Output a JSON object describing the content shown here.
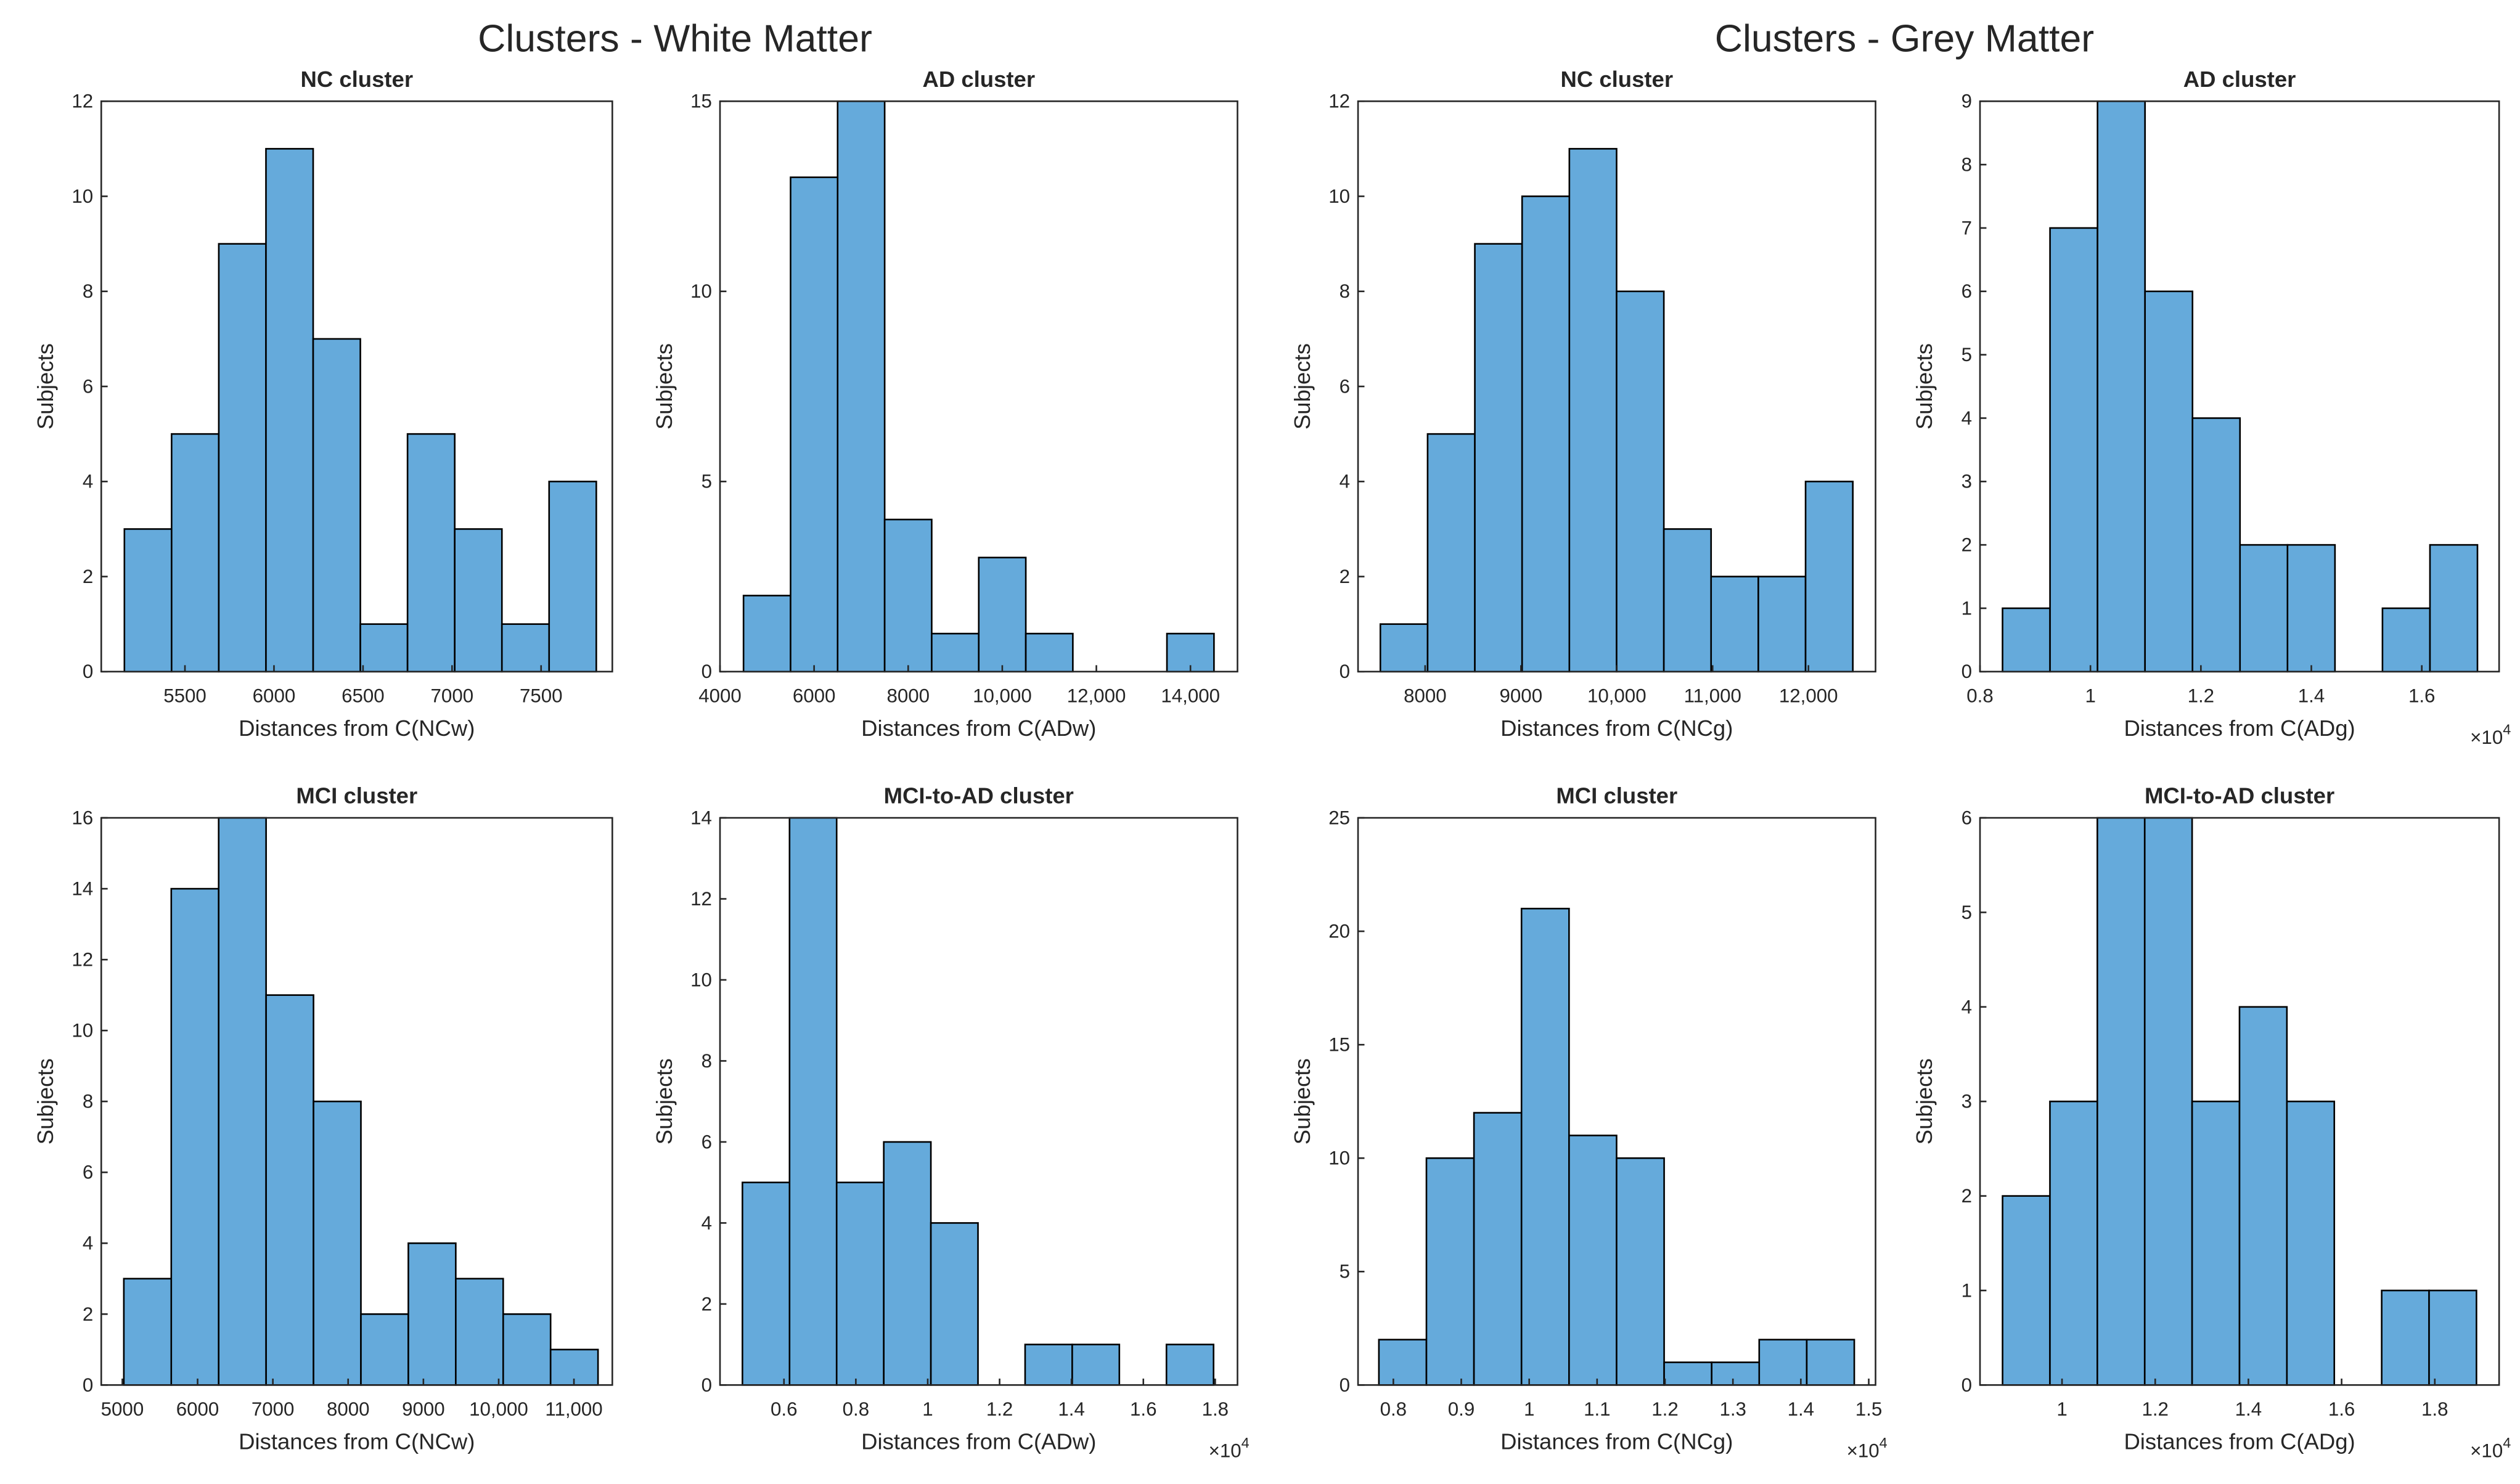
{
  "suptitles": [
    "Clusters - White Matter",
    "Clusters - Grey Matter"
  ],
  "chart_data": [
    {
      "type": "histogram",
      "title": "NC cluster",
      "xlabel": "Distances from C(NCw)",
      "ylabel": "Subjects",
      "color": "#65aadb",
      "bins": [
        5160,
        5425,
        5690,
        5955,
        6220,
        6485,
        6750,
        7015,
        7280,
        7545,
        7810
      ],
      "counts": [
        3,
        5,
        9,
        11,
        7,
        1,
        5,
        3,
        1,
        4
      ],
      "xlim": [
        5030,
        7900
      ],
      "ylim": [
        0,
        12
      ],
      "xticks": [
        5500,
        6000,
        6500,
        7000,
        7500
      ],
      "yticks": [
        0,
        2,
        4,
        6,
        8,
        10,
        12
      ]
    },
    {
      "type": "histogram",
      "title": "AD cluster",
      "xlabel": "Distances from C(ADw)",
      "ylabel": "Subjects",
      "color": "#65aadb",
      "bins": [
        4500,
        5500,
        6500,
        7500,
        8500,
        9500,
        10500,
        11500,
        12500,
        13500,
        14500
      ],
      "counts": [
        2,
        13,
        15,
        4,
        1,
        3,
        1,
        0,
        0,
        1
      ],
      "xlim": [
        4000,
        15000
      ],
      "ylim": [
        0,
        15
      ],
      "xticks": [
        4000,
        6000,
        8000,
        {
          "value": 10000,
          "label": "10,000"
        },
        {
          "value": 12000,
          "label": "12,000"
        },
        {
          "value": 14000,
          "label": "14,000"
        }
      ],
      "yticks": [
        0,
        5,
        10,
        15
      ]
    },
    {
      "type": "histogram",
      "title": "NC cluster",
      "xlabel": "Distances from C(NCg)",
      "ylabel": "Subjects",
      "color": "#65aadb",
      "bins": [
        7533,
        8026,
        8519,
        9012,
        9505,
        9998,
        10491,
        10984,
        11477,
        11970,
        12463
      ],
      "counts": [
        1,
        5,
        9,
        10,
        11,
        8,
        3,
        2,
        2,
        4
      ],
      "xlim": [
        7300,
        12700
      ],
      "ylim": [
        0,
        12
      ],
      "xticks": [
        8000,
        9000,
        {
          "value": 10000,
          "label": "10,000"
        },
        {
          "value": 11000,
          "label": "11,000"
        },
        {
          "value": 12000,
          "label": "12,000"
        }
      ],
      "yticks": [
        0,
        2,
        4,
        6,
        8,
        10,
        12
      ]
    },
    {
      "type": "histogram",
      "title": "AD cluster",
      "xlabel": "Distances from C(ADg)",
      "ylabel": "Subjects",
      "color": "#65aadb",
      "bins": [
        8408,
        9268,
        10128,
        10988,
        11848,
        12708,
        13568,
        14428,
        15288,
        16148,
        17008
      ],
      "counts": [
        1,
        7,
        9,
        6,
        4,
        2,
        2,
        0,
        1,
        2
      ],
      "xlim": [
        8000,
        17400
      ],
      "ylim": [
        0,
        9
      ],
      "xticks": [
        {
          "value": 8000,
          "label": "0.8"
        },
        {
          "value": 10000,
          "label": "1"
        },
        {
          "value": 12000,
          "label": "1.2"
        },
        {
          "value": 14000,
          "label": "1.4"
        },
        {
          "value": 16000,
          "label": "1.6"
        }
      ],
      "yticks": [
        0,
        1,
        2,
        3,
        4,
        5,
        6,
        7,
        8,
        9
      ],
      "x_multiplier": {
        "base": "×10",
        "exponent": "4"
      }
    },
    {
      "type": "histogram",
      "title": "MCI cluster",
      "xlabel": "Distances from C(NCw)",
      "ylabel": "Subjects",
      "color": "#65aadb",
      "bins": [
        5020,
        5650,
        6280,
        6910,
        7540,
        8170,
        8800,
        9430,
        10060,
        10690,
        11320
      ],
      "counts": [
        3,
        14,
        16,
        11,
        8,
        2,
        4,
        3,
        2,
        1
      ],
      "xlim": [
        4720,
        11510
      ],
      "ylim": [
        0,
        16
      ],
      "xticks": [
        5000,
        6000,
        7000,
        8000,
        9000,
        {
          "value": 10000,
          "label": "10,000"
        },
        {
          "value": 11000,
          "label": "11,000"
        }
      ],
      "yticks": [
        0,
        2,
        4,
        6,
        8,
        10,
        12,
        14,
        16
      ]
    },
    {
      "type": "histogram",
      "title": "MCI-to-AD cluster",
      "xlabel": "Distances from C(ADw)",
      "ylabel": "Subjects",
      "color": "#65aadb",
      "bins": [
        4844,
        6155,
        7466,
        8777,
        10088,
        11399,
        12710,
        14021,
        15332,
        16643,
        17954
      ],
      "counts": [
        5,
        14,
        5,
        6,
        4,
        0,
        1,
        1,
        0,
        1
      ],
      "xlim": [
        4220,
        18620
      ],
      "ylim": [
        0,
        14
      ],
      "xticks": [
        {
          "value": 6000,
          "label": "0.6"
        },
        {
          "value": 8000,
          "label": "0.8"
        },
        {
          "value": 10000,
          "label": "1"
        },
        {
          "value": 12000,
          "label": "1.2"
        },
        {
          "value": 14000,
          "label": "1.4"
        },
        {
          "value": 16000,
          "label": "1.6"
        },
        {
          "value": 18000,
          "label": "1.8"
        }
      ],
      "yticks": [
        0,
        2,
        4,
        6,
        8,
        10,
        12,
        14
      ],
      "x_multiplier": {
        "base": "×10",
        "exponent": "4"
      }
    },
    {
      "type": "histogram",
      "title": "MCI cluster",
      "xlabel": "Distances from C(NCg)",
      "ylabel": "Subjects",
      "color": "#65aadb",
      "bins": [
        7787,
        8487,
        9187,
        9887,
        10587,
        11287,
        11987,
        12687,
        13387,
        14087,
        14787
      ],
      "counts": [
        2,
        10,
        12,
        21,
        11,
        10,
        1,
        1,
        2,
        2
      ],
      "xlim": [
        7480,
        15100
      ],
      "ylim": [
        0,
        25
      ],
      "xticks": [
        {
          "value": 8000,
          "label": "0.8"
        },
        {
          "value": 9000,
          "label": "0.9"
        },
        {
          "value": 10000,
          "label": "1"
        },
        {
          "value": 11000,
          "label": "1.1"
        },
        {
          "value": 12000,
          "label": "1.2"
        },
        {
          "value": 13000,
          "label": "1.3"
        },
        {
          "value": 14000,
          "label": "1.4"
        },
        {
          "value": 15000,
          "label": "1.5"
        }
      ],
      "yticks": [
        0,
        5,
        10,
        15,
        20,
        25
      ],
      "x_multiplier": {
        "base": "×10",
        "exponent": "4"
      }
    },
    {
      "type": "histogram",
      "title": "MCI-to-AD cluster",
      "xlabel": "Distances from C(ADg)",
      "ylabel": "Subjects",
      "color": "#65aadb",
      "bins": [
        8724,
        9741,
        10758,
        11775,
        12792,
        13809,
        14826,
        15843,
        16860,
        17877,
        18894
      ],
      "counts": [
        2,
        3,
        6,
        6,
        3,
        4,
        3,
        0,
        1,
        1
      ],
      "xlim": [
        8240,
        19380
      ],
      "ylim": [
        0,
        6
      ],
      "xticks": [
        {
          "value": 10000,
          "label": "1"
        },
        {
          "value": 12000,
          "label": "1.2"
        },
        {
          "value": 14000,
          "label": "1.4"
        },
        {
          "value": 16000,
          "label": "1.6"
        },
        {
          "value": 18000,
          "label": "1.8"
        }
      ],
      "yticks": [
        0,
        1,
        2,
        3,
        4,
        5,
        6
      ],
      "x_multiplier": {
        "base": "×10",
        "exponent": "4"
      }
    }
  ]
}
